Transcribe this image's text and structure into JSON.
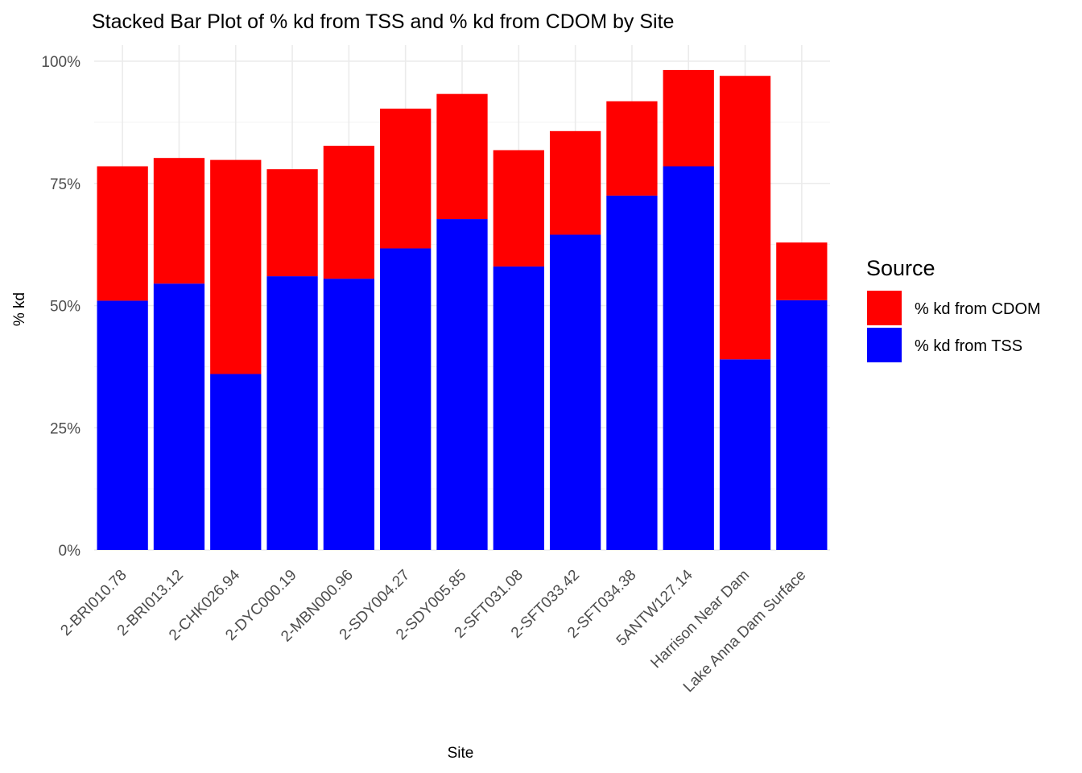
{
  "chart_data": {
    "type": "bar",
    "stacked": true,
    "title": "Stacked Bar Plot of % kd from TSS and % kd from CDOM by Site",
    "xlabel": "Site",
    "ylabel": "% kd",
    "ylim": [
      0,
      1
    ],
    "y_ticks": [
      {
        "value": 0,
        "label": "0%"
      },
      {
        "value": 0.25,
        "label": "25%"
      },
      {
        "value": 0.5,
        "label": "50%"
      },
      {
        "value": 0.75,
        "label": "75%"
      },
      {
        "value": 1.0,
        "label": "100%"
      }
    ],
    "grid": true,
    "legend_position": "right",
    "legend_title": "Source",
    "categories": [
      "2-BRI010.78",
      "2-BRI013.12",
      "2-CHK026.94",
      "2-DYC000.19",
      "2-MBN000.96",
      "2-SDY004.27",
      "2-SDY005.85",
      "2-SFT031.08",
      "2-SFT033.42",
      "2-SFT034.38",
      "5ANTW127.14",
      "Harrison Near Dam",
      "Lake Anna Dam Surface"
    ],
    "series": [
      {
        "name": "% kd from TSS",
        "color": "#0000ff",
        "values": [
          0.51,
          0.545,
          0.36,
          0.56,
          0.555,
          0.617,
          0.677,
          0.58,
          0.645,
          0.725,
          0.785,
          0.39,
          0.511
        ]
      },
      {
        "name": "% kd from CDOM",
        "color": "#ff0000",
        "values": [
          0.275,
          0.257,
          0.438,
          0.219,
          0.272,
          0.286,
          0.256,
          0.238,
          0.212,
          0.193,
          0.197,
          0.58,
          0.118
        ]
      }
    ]
  }
}
